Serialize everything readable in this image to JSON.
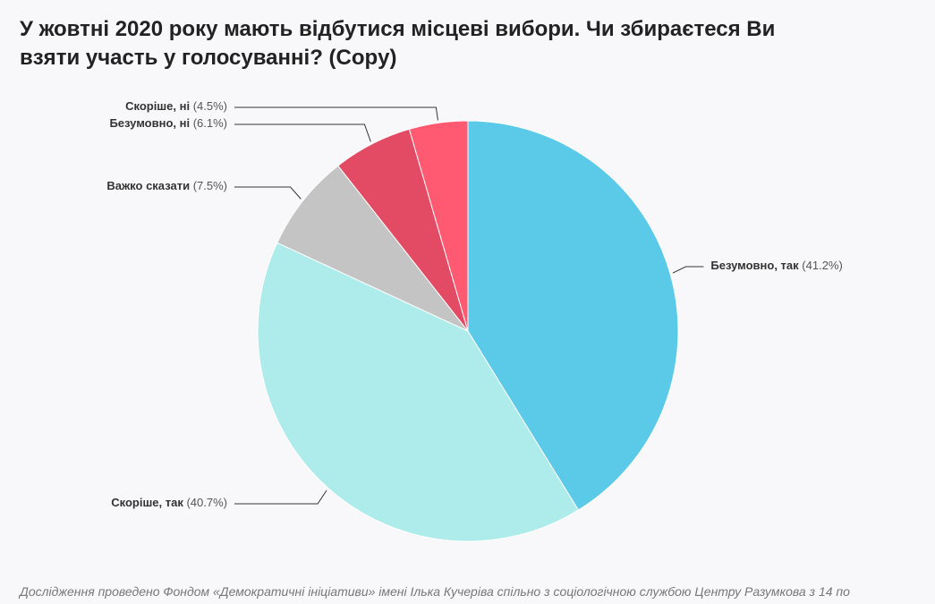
{
  "chart_data": {
    "type": "pie",
    "title": "У жовтні 2020 року мають відбутися місцеві вибори. Чи збираєтеся Ви взяти участь у голосуванні? (Copy)",
    "categories": [
      "Безумовно, так",
      "Скоріше, так",
      "Важко сказати",
      "Безумовно, ні",
      "Скоріше, ні"
    ],
    "values": [
      41.2,
      40.7,
      7.5,
      6.1,
      4.5
    ],
    "value_labels": [
      "(41.2%)",
      "(40.7%)",
      "(7.5%)",
      "(6.1%)",
      "(4.5%)"
    ],
    "colors": [
      "#5bc9e8",
      "#aeecec",
      "#c4c4c4",
      "#e34a63",
      "#ff5a72"
    ],
    "note": "Дослідження проведено Фондом «Демократичні ініціативи» імені Ілька Кучеріва спільно з соціологічною службою Центру Разумкова з 14 по"
  }
}
